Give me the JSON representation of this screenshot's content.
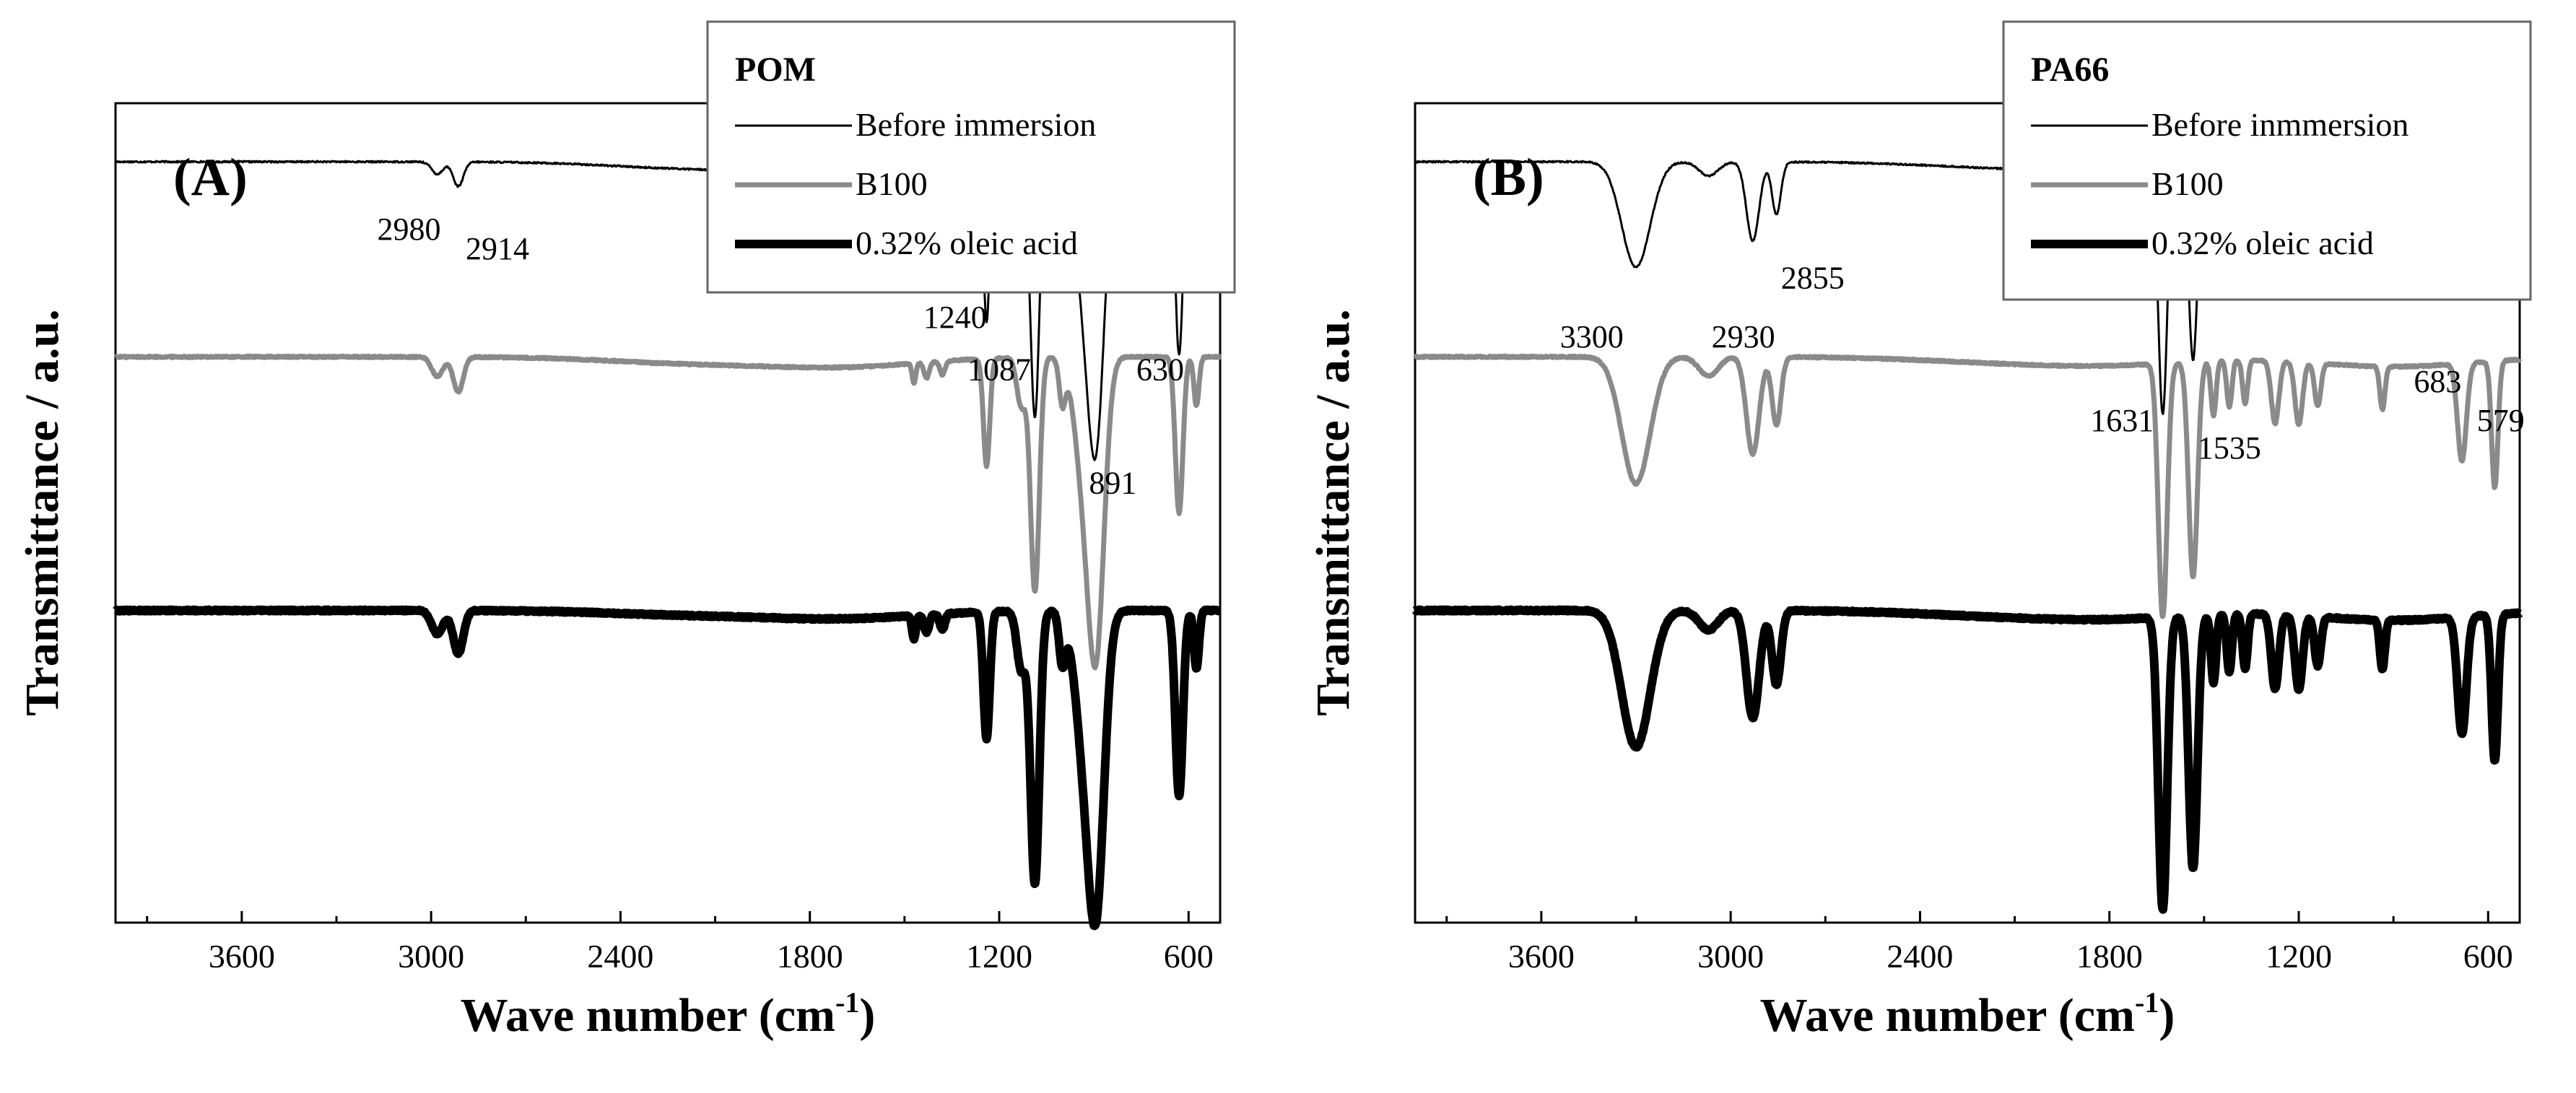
{
  "chart_data": [
    {
      "type": "line",
      "panel_label": "(A)",
      "title": "",
      "xlabel": "Wave number (cm",
      "xlabel_sup": "-1",
      "xlabel_close": ")",
      "ylabel": "Transmittance / a.u.",
      "xlim": [
        4000,
        500
      ],
      "x_reversed": true,
      "xticks": [
        3600,
        3000,
        2400,
        1800,
        1200,
        600
      ],
      "xtick_labels": [
        "3600",
        "3000",
        "2400",
        "1800",
        "1200",
        "600"
      ],
      "yticks": [],
      "grid": false,
      "legend_placement": "top-right",
      "legend_title": "POM",
      "series": [
        {
          "name": "Before immersion",
          "color": "#000000",
          "line_width": "thin",
          "offset": 2.3,
          "depth_scale": 0.9,
          "noise": 0.004,
          "peaks": [
            [
              2980,
              0.07,
              18
            ],
            [
              2914,
              0.14,
              16
            ],
            [
              1470,
              0.1,
              6
            ],
            [
              1430,
              0.08,
              8
            ],
            [
              1380,
              0.07,
              8
            ],
            [
              1240,
              0.9,
              10
            ],
            [
              1130,
              0.28,
              14
            ],
            [
              1087,
              1.45,
              14
            ],
            [
              1000,
              0.25,
              10
            ],
            [
              930,
              0.7,
              30
            ],
            [
              891,
              1.35,
              25
            ],
            [
              630,
              1.1,
              12
            ],
            [
              575,
              0.3,
              8
            ]
          ],
          "baseline_drift": [
            [
              2200,
              0.03
            ],
            [
              1700,
              0.05
            ]
          ]
        },
        {
          "name": "B100",
          "color": "#8a8a8a",
          "line_width": "medium",
          "offset": 1.3,
          "depth_scale": 1.0,
          "noise": 0.004,
          "peaks": [
            [
              2980,
              0.1,
              18
            ],
            [
              2914,
              0.18,
              16
            ],
            [
              1470,
              0.1,
              6
            ],
            [
              1430,
              0.08,
              8
            ],
            [
              1380,
              0.07,
              8
            ],
            [
              1240,
              0.55,
              10
            ],
            [
              1130,
              0.25,
              14
            ],
            [
              1087,
              1.2,
              14
            ],
            [
              1000,
              0.22,
              10
            ],
            [
              930,
              0.6,
              30
            ],
            [
              891,
              1.3,
              25
            ],
            [
              630,
              0.8,
              12
            ],
            [
              575,
              0.25,
              8
            ]
          ],
          "baseline_drift": [
            [
              2200,
              0.03
            ],
            [
              1700,
              0.05
            ]
          ]
        },
        {
          "name": "0.32% oleic acid",
          "color": "#000000",
          "line_width": "thick",
          "offset": 0.0,
          "depth_scale": 1.0,
          "noise": 0.004,
          "peaks": [
            [
              2980,
              0.12,
              18
            ],
            [
              2914,
              0.22,
              16
            ],
            [
              1470,
              0.12,
              6
            ],
            [
              1430,
              0.09,
              8
            ],
            [
              1380,
              0.08,
              8
            ],
            [
              1240,
              0.65,
              10
            ],
            [
              1130,
              0.3,
              14
            ],
            [
              1087,
              1.4,
              14
            ],
            [
              1000,
              0.25,
              10
            ],
            [
              930,
              0.65,
              30
            ],
            [
              891,
              1.3,
              25
            ],
            [
              630,
              0.95,
              12
            ],
            [
              575,
              0.3,
              8
            ]
          ],
          "baseline_drift": [
            [
              2200,
              0.02
            ],
            [
              1700,
              0.04
            ]
          ]
        }
      ],
      "ylim": [
        -1.6,
        2.6
      ],
      "annotations": [
        {
          "text": "2980",
          "x": 3070,
          "y": 1.9
        },
        {
          "text": "2914",
          "x": 2790,
          "y": 1.8
        },
        {
          "text": "1240",
          "x": 1340,
          "y": 1.45
        },
        {
          "text": "1087",
          "x": 1200,
          "y": 1.18
        },
        {
          "text": "630",
          "x": 690,
          "y": 1.18
        },
        {
          "text": "891",
          "x": 840,
          "y": 0.6
        }
      ]
    },
    {
      "type": "line",
      "panel_label": "(B)",
      "title": "",
      "xlabel": "Wave number (cm",
      "xlabel_sup": "-1",
      "xlabel_close": ")",
      "ylabel": "Transmittance / a.u.",
      "xlim": [
        4000,
        500
      ],
      "x_reversed": true,
      "xticks": [
        3600,
        3000,
        2400,
        1800,
        1200,
        600
      ],
      "xtick_labels": [
        "3600",
        "3000",
        "2400",
        "1800",
        "1200",
        "600"
      ],
      "yticks": [],
      "grid": false,
      "legend_placement": "top-right",
      "legend_title": "PA66",
      "series": [
        {
          "name": "Before inmmersion",
          "color": "#000000",
          "line_width": "thin",
          "offset": 2.3,
          "depth_scale": 0.9,
          "noise": 0.004,
          "peaks": [
            [
              3300,
              0.6,
              45
            ],
            [
              3070,
              0.08,
              30
            ],
            [
              2930,
              0.45,
              20
            ],
            [
              2855,
              0.3,
              14
            ],
            [
              1631,
              1.4,
              14
            ],
            [
              1535,
              1.1,
              14
            ],
            [
              1470,
              0.25,
              8
            ],
            [
              1420,
              0.22,
              8
            ],
            [
              1370,
              0.2,
              8
            ],
            [
              1275,
              0.3,
              12
            ],
            [
              1200,
              0.3,
              12
            ],
            [
              1140,
              0.2,
              10
            ],
            [
              935,
              0.2,
              8
            ],
            [
              683,
              0.45,
              14
            ],
            [
              579,
              0.6,
              10
            ]
          ],
          "baseline_drift": [
            [
              2200,
              0.02
            ],
            [
              1800,
              0.04
            ],
            [
              900,
              0.05
            ]
          ]
        },
        {
          "name": "B100",
          "color": "#8a8a8a",
          "line_width": "medium",
          "offset": 1.3,
          "depth_scale": 1.0,
          "noise": 0.004,
          "peaks": [
            [
              3300,
              0.65,
              45
            ],
            [
              3070,
              0.1,
              30
            ],
            [
              2930,
              0.5,
              20
            ],
            [
              2855,
              0.35,
              14
            ],
            [
              1631,
              1.3,
              14
            ],
            [
              1535,
              1.1,
              14
            ],
            [
              1470,
              0.28,
              8
            ],
            [
              1420,
              0.24,
              8
            ],
            [
              1370,
              0.22,
              8
            ],
            [
              1275,
              0.32,
              12
            ],
            [
              1200,
              0.32,
              12
            ],
            [
              1140,
              0.22,
              10
            ],
            [
              935,
              0.22,
              8
            ],
            [
              683,
              0.5,
              14
            ],
            [
              579,
              0.65,
              10
            ]
          ],
          "baseline_drift": [
            [
              2200,
              0.02
            ],
            [
              1800,
              0.04
            ],
            [
              900,
              0.05
            ]
          ]
        },
        {
          "name": "0.32% oleic acid",
          "color": "#000000",
          "line_width": "thick",
          "offset": 0.0,
          "depth_scale": 1.0,
          "noise": 0.004,
          "peaks": [
            [
              3300,
              0.7,
              45
            ],
            [
              3070,
              0.1,
              30
            ],
            [
              2930,
              0.55,
              20
            ],
            [
              2855,
              0.38,
              14
            ],
            [
              1631,
              1.5,
              14
            ],
            [
              1535,
              1.3,
              14
            ],
            [
              1470,
              0.35,
              8
            ],
            [
              1420,
              0.3,
              8
            ],
            [
              1370,
              0.28,
              8
            ],
            [
              1275,
              0.38,
              12
            ],
            [
              1200,
              0.38,
              12
            ],
            [
              1140,
              0.25,
              10
            ],
            [
              935,
              0.25,
              8
            ],
            [
              683,
              0.6,
              14
            ],
            [
              579,
              0.75,
              10
            ]
          ],
          "baseline_drift": [
            [
              2200,
              0.02
            ],
            [
              1800,
              0.04
            ],
            [
              900,
              0.05
            ]
          ]
        }
      ],
      "ylim": [
        -1.6,
        2.6
      ],
      "annotations": [
        {
          "text": "3300",
          "x": 3440,
          "y": 1.35
        },
        {
          "text": "2930",
          "x": 2960,
          "y": 1.35
        },
        {
          "text": "2855",
          "x": 2740,
          "y": 1.65
        },
        {
          "text": "1631",
          "x": 1760,
          "y": 0.92
        },
        {
          "text": "1535",
          "x": 1420,
          "y": 0.78
        },
        {
          "text": "683",
          "x": 760,
          "y": 1.12
        },
        {
          "text": "579",
          "x": 560,
          "y": 0.92
        }
      ]
    }
  ]
}
